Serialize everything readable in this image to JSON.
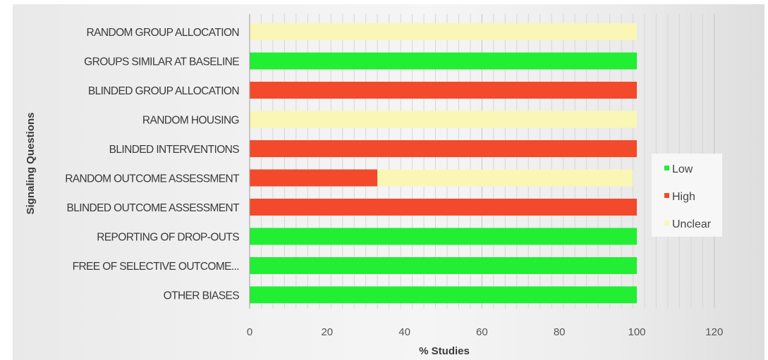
{
  "chart_data": {
    "type": "bar",
    "orientation": "horizontal",
    "stacked": true,
    "title": "",
    "xlabel": "% Studies",
    "ylabel": "Signaling Questions",
    "xlim": [
      0,
      120
    ],
    "xticks": [
      "0",
      "20",
      "40",
      "60",
      "80",
      "100",
      "120"
    ],
    "grid": "vertical minor gridlines",
    "legend_position": "right",
    "categories": [
      "RANDOM GROUP ALLOCATION",
      "GROUPS SIMILAR AT BASELINE",
      "BLINDED GROUP ALLOCATION",
      "RANDOM HOUSING",
      "BLINDED INTERVENTIONS",
      "RANDOM OUTCOME ASSESSMENT",
      "BLINDED OUTCOME ASSESSMENT",
      "REPORTING OF DROP-OUTS",
      "FREE OF SELECTIVE OUTCOME...",
      "OTHER BIASES"
    ],
    "series": [
      {
        "name": "Low",
        "color": "#22ee33",
        "values": [
          0,
          100,
          0,
          0,
          0,
          0,
          0,
          100,
          100,
          100
        ]
      },
      {
        "name": "High",
        "color": "#f24a2a",
        "values": [
          0,
          0,
          100,
          0,
          100,
          33,
          100,
          0,
          0,
          0
        ]
      },
      {
        "name": "Unclear",
        "color": "#faf6b6",
        "values": [
          100,
          0,
          0,
          100,
          0,
          66,
          0,
          0,
          0,
          0
        ]
      }
    ]
  }
}
